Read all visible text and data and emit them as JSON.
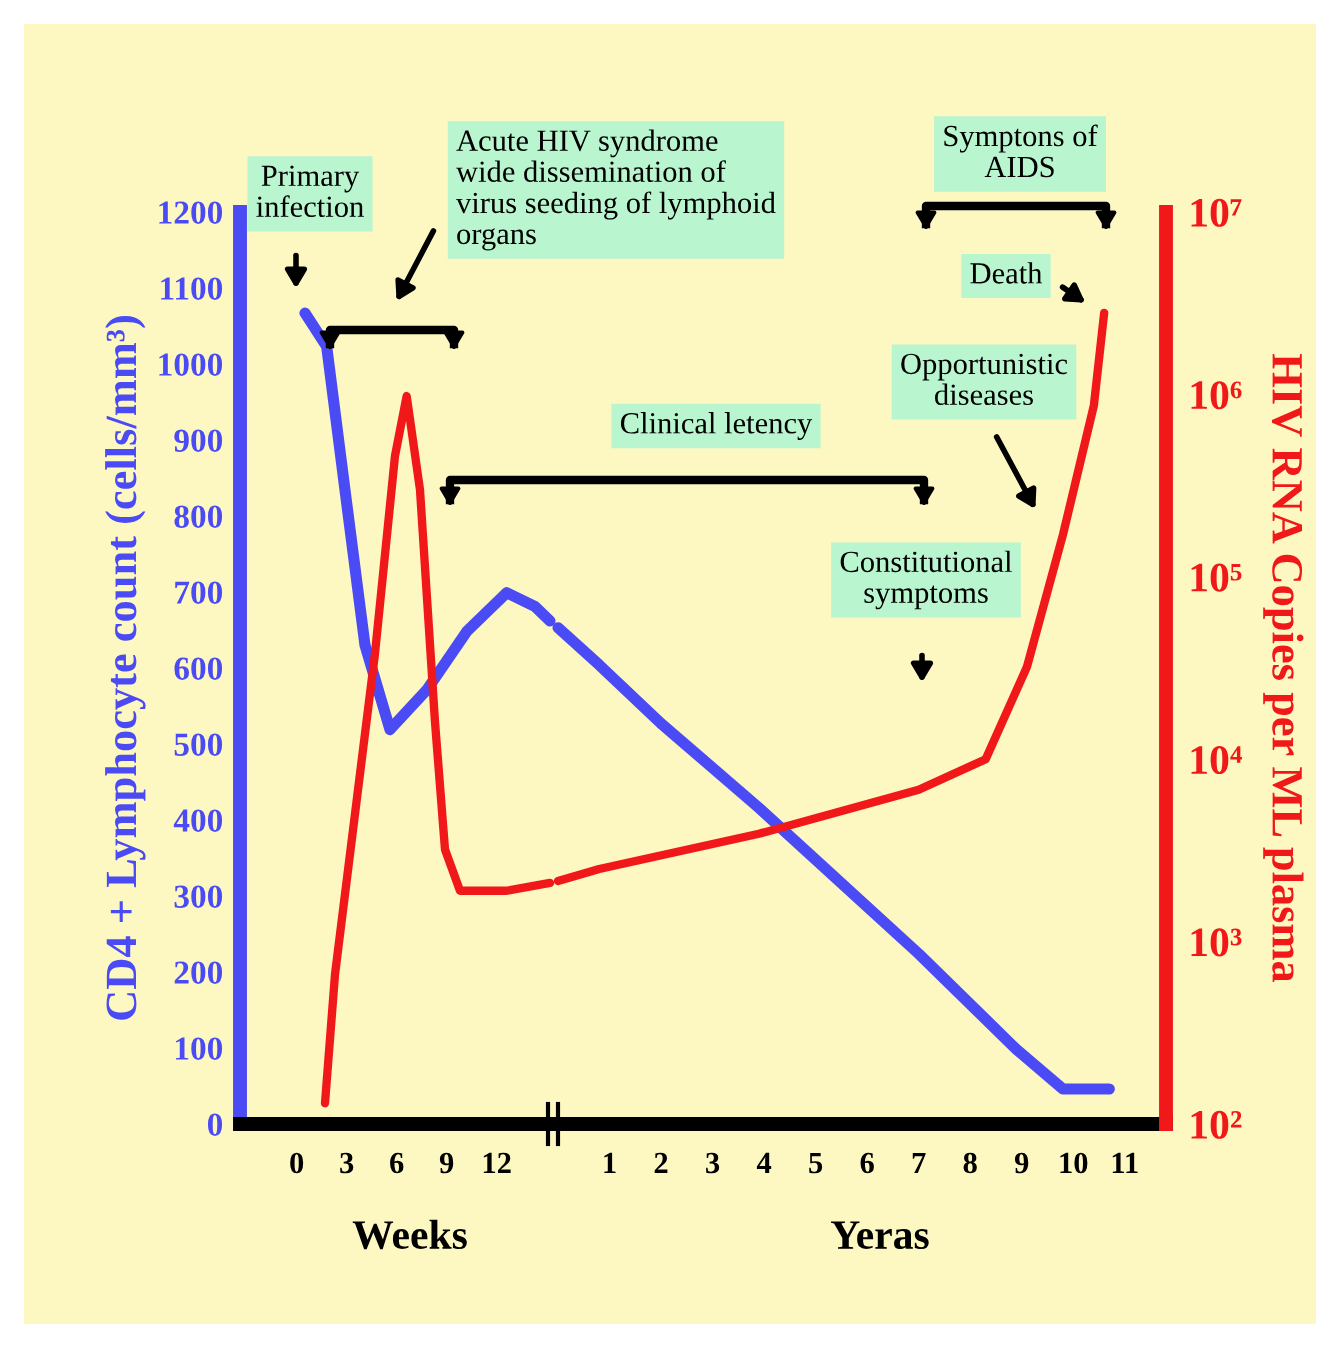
{
  "chart_data": [
    {
      "type": "line",
      "ylabel": "CD4 + Lymphocyte count (cells/mm³)",
      "xlabel": "Weeks",
      "annotations": [
        "Primary\ninfection",
        "Acute HIV syndrome\nwide dissemination of\nvirus seeding of lymphoid\norgans"
      ],
      "xlim": [
        -3.4,
        15.2
      ],
      "xticks": [
        0,
        3,
        6,
        9,
        12
      ],
      "ylim": [
        0,
        1200
      ],
      "yticks": [
        0,
        100,
        200,
        300,
        400,
        500,
        600,
        700,
        800,
        900,
        1000,
        1100,
        1200
      ],
      "y2lim": [
        100,
        10000000
      ],
      "log": "y2",
      "series": [
        {
          "color": "#4b4bf5",
          "x": [
            0.5,
            1.8,
            3.0,
            4.1,
            5.6,
            7.8,
            10.2,
            12.6,
            14.3,
            15.2
          ],
          "values": [
            1067,
            1023,
            817,
            630,
            519,
            571,
            648,
            699,
            681,
            662
          ]
        },
        {
          "color": "#f01818",
          "axis": "y2",
          "x": [
            1.7,
            2.3,
            4.7,
            5.9,
            6.6,
            7.4,
            8.3,
            8.9,
            9.8,
            12.6,
            15.2
          ],
          "values": [
            130,
            660,
            38000,
            460000,
            980000,
            300000,
            16000,
            3200,
            1900,
            1900,
            2100
          ]
        }
      ]
    },
    {
      "type": "line",
      "y2label": "HIV RNA Copies per ML plasma",
      "xlabel": "Yeras",
      "annotations": [
        "Clinical letency",
        "Symptons of\nAIDS",
        "Death",
        "Opportunistic\ndiseases",
        "Constitutional\nsymptoms"
      ],
      "xlim": [
        0,
        11.8
      ],
      "xticks": [
        1,
        2,
        3,
        4,
        5,
        6,
        7,
        8,
        9,
        10,
        11
      ],
      "ylim": [
        0,
        1200
      ],
      "y2lim": [
        100,
        10000000
      ],
      "log": "y2",
      "y2ticks": [
        {
          "value": 100,
          "label": "10²"
        },
        {
          "value": 1000,
          "label": "10³"
        },
        {
          "value": 10000,
          "label": "10⁴"
        },
        {
          "value": 100000,
          "label": "10⁵"
        },
        {
          "value": 1000000,
          "label": "10⁶"
        },
        {
          "value": 10000000,
          "label": "10⁷"
        }
      ],
      "series": [
        {
          "color": "#4b4bf5",
          "x": [
            0,
            0.8,
            2.0,
            3.9,
            7.0,
            8.9,
            9.8,
            10.7
          ],
          "values": [
            653,
            604,
            527,
            416,
            224,
            98,
            46,
            46
          ]
        },
        {
          "color": "#f01818",
          "axis": "y2",
          "x": [
            0,
            0.8,
            3.9,
            7.0,
            8.3,
            9.1,
            9.8,
            10.4,
            10.6
          ],
          "values": [
            2150,
            2500,
            3900,
            6800,
            10000,
            32000,
            170000,
            870000,
            2800000
          ]
        }
      ]
    }
  ]
}
